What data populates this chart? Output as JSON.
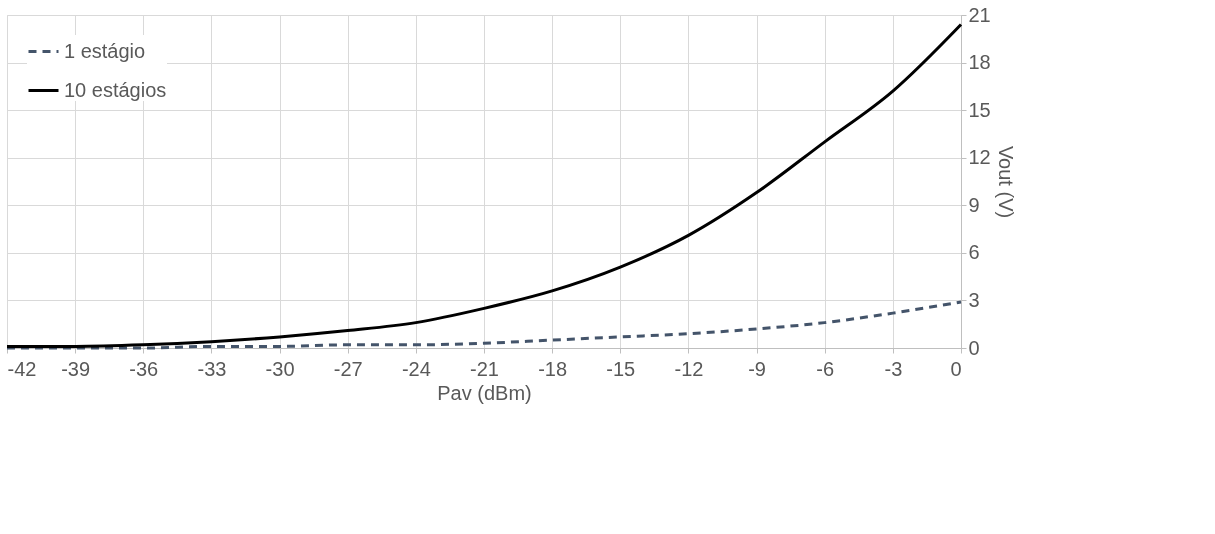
{
  "chart_data": {
    "type": "line",
    "xlabel": "Pav (dBm)",
    "ylabel": "Vout (V)",
    "x": [
      -42,
      -39,
      -36,
      -33,
      -30,
      -27,
      -24,
      -21,
      -18,
      -15,
      -12,
      -9,
      -6,
      -3,
      0
    ],
    "series": [
      {
        "name": "1 estágio",
        "color": "#44546a",
        "line_style": "dashed",
        "values": [
          0.0,
          0.0,
          0.0,
          0.1,
          0.1,
          0.2,
          0.2,
          0.3,
          0.5,
          0.7,
          0.9,
          1.2,
          1.6,
          2.2,
          2.9
        ]
      },
      {
        "name": "10 estágios",
        "color": "#000000",
        "line_style": "solid",
        "values": [
          0.1,
          0.1,
          0.2,
          0.4,
          0.7,
          1.1,
          1.6,
          2.5,
          3.6,
          5.1,
          7.1,
          9.8,
          13.0,
          16.2,
          20.4
        ]
      }
    ],
    "xlim": [
      -42,
      0
    ],
    "xticks": [
      -42,
      -39,
      -36,
      -33,
      -30,
      -27,
      -24,
      -21,
      -18,
      -15,
      -12,
      -9,
      -6,
      -3,
      0
    ],
    "ylim": [
      0,
      21
    ],
    "yticks": [
      0,
      3,
      6,
      9,
      12,
      15,
      18,
      21
    ],
    "grid": true,
    "legend": "top left",
    "marker": "none"
  }
}
